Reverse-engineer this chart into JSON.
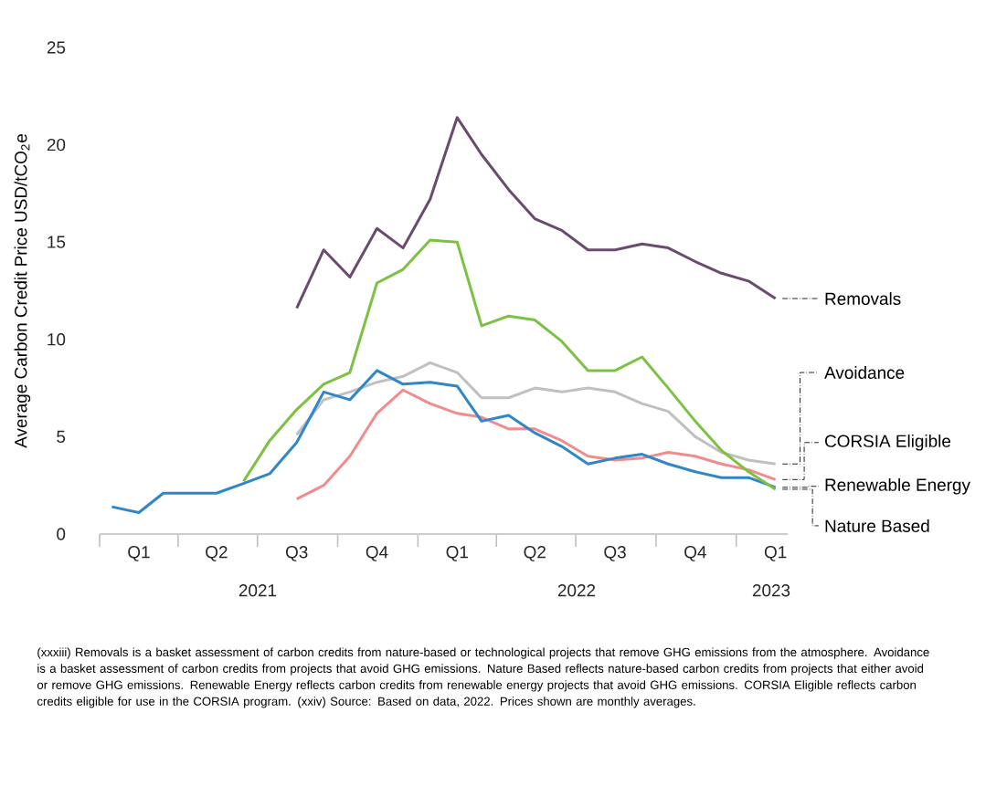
{
  "chart_data": {
    "type": "line",
    "ylabel": "Average Carbon Credit Price USD/tCO$_{2}$e",
    "x": [
      "2021-01-15",
      "2021-02-15",
      "2021-03-15",
      "2021-04-15",
      "2021-05-15",
      "2021-06-15",
      "2021-07-15",
      "2021-08-15",
      "2021-09-15",
      "2021-10-15",
      "2021-11-15",
      "2021-12-15",
      "2022-01-15",
      "2022-02-15",
      "2022-03-15",
      "2022-04-15",
      "2022-05-15",
      "2022-06-15",
      "2022-07-15",
      "2022-08-15",
      "2022-09-15",
      "2022-10-15",
      "2022-11-15",
      "2022-12-15",
      "2023-01-15",
      "2023-02-15"
    ],
    "series": [
      {
        "name": "Removals",
        "color": "#6b4a70",
        "values": [
          null,
          null,
          null,
          null,
          null,
          null,
          null,
          11.6,
          14.6,
          13.2,
          15.7,
          14.7,
          17.2,
          21.4,
          19.5,
          17.7,
          16.2,
          15.6,
          14.6,
          14.6,
          14.9,
          14.7,
          14.0,
          13.4,
          13.0,
          12.1
        ]
      },
      {
        "name": "Avoidance",
        "color": "#c0c0c0",
        "values": [
          null,
          null,
          null,
          null,
          null,
          null,
          null,
          5.1,
          6.9,
          7.3,
          7.8,
          8.1,
          8.8,
          8.3,
          7.0,
          7.0,
          7.5,
          7.3,
          7.5,
          7.3,
          6.7,
          6.3,
          5.0,
          4.2,
          3.8,
          3.6
        ]
      },
      {
        "name": "CORSIA Eligible",
        "color": "#f28b8b",
        "values": [
          null,
          null,
          null,
          null,
          null,
          null,
          null,
          1.8,
          2.5,
          4.0,
          6.2,
          7.4,
          6.7,
          6.2,
          6.0,
          5.4,
          5.4,
          4.8,
          4.0,
          3.8,
          3.9,
          4.2,
          4.0,
          3.6,
          3.3,
          2.8
        ]
      },
      {
        "name": "Renewable Energy",
        "color": "#2f86c9",
        "values": [
          1.4,
          1.1,
          2.1,
          2.1,
          2.1,
          2.6,
          3.1,
          4.7,
          7.3,
          6.9,
          8.4,
          7.7,
          7.8,
          7.6,
          5.8,
          6.1,
          5.2,
          4.5,
          3.6,
          3.9,
          4.1,
          3.6,
          3.2,
          2.9,
          2.9,
          2.4
        ]
      },
      {
        "name": "Nature Based",
        "color": "#7cc142",
        "values": [
          null,
          null,
          null,
          null,
          null,
          2.7,
          4.8,
          6.4,
          7.7,
          8.3,
          12.9,
          13.6,
          15.1,
          15.0,
          10.7,
          11.2,
          11.0,
          9.9,
          8.4,
          8.4,
          9.1,
          7.5,
          5.8,
          4.3,
          3.2,
          2.3
        ]
      }
    ],
    "xlim": [
      "2021-01-01",
      "2023-03-01"
    ],
    "xticks": [
      {
        "value": "2021-01-01",
        "label": null
      },
      {
        "value": "2021-04-01",
        "label": null
      },
      {
        "value": "2021-07-01",
        "label": null
      },
      {
        "value": "2021-10-01",
        "label": null
      },
      {
        "value": "2022-01-01",
        "label": null
      },
      {
        "value": "2022-04-01",
        "label": null
      },
      {
        "value": "2022-07-01",
        "label": null
      },
      {
        "value": "2022-10-01",
        "label": null
      },
      {
        "value": "2023-01-01",
        "label": null
      },
      {
        "value": "2021-02-15",
        "label": "Q1"
      },
      {
        "value": "2021-05-15",
        "label": "Q2"
      },
      {
        "value": "2021-08-15",
        "label": "Q3"
      },
      {
        "value": "2021-11-15",
        "label": "Q4"
      },
      {
        "value": "2022-02-15",
        "label": "Q1"
      },
      {
        "value": "2022-05-15",
        "label": "Q2"
      },
      {
        "value": "2022-08-15",
        "label": "Q3"
      },
      {
        "value": "2022-11-15",
        "label": "Q4"
      },
      {
        "value": "2023-02-15",
        "label": "Q1"
      }
    ],
    "ylim": [
      0,
      25
    ],
    "yticks": [
      0,
      5,
      10,
      15,
      20,
      25
    ],
    "grid": false,
    "annotations": [
      "2021",
      "2022",
      "2023",
      "(xxxiii) Removals is a basket assessment of carbon credits from nature-based or technological projects that remove GHG emissions from the atmosphere. Avoidance is a basket assessment of carbon credits from projects that avoid GHG emissions. Nature Based reflects nature-based carbon credits from projects that either avoid or remove GHG emissions. Renewable Energy reflects carbon credits from renewable energy projects that avoid GHG emissions. CORSIA Eligible reflects carbon credits eligible for use in the CORSIA program. (xxiv) Source: Based on data, 2022. Prices shown are monthly averages."
    ]
  }
}
